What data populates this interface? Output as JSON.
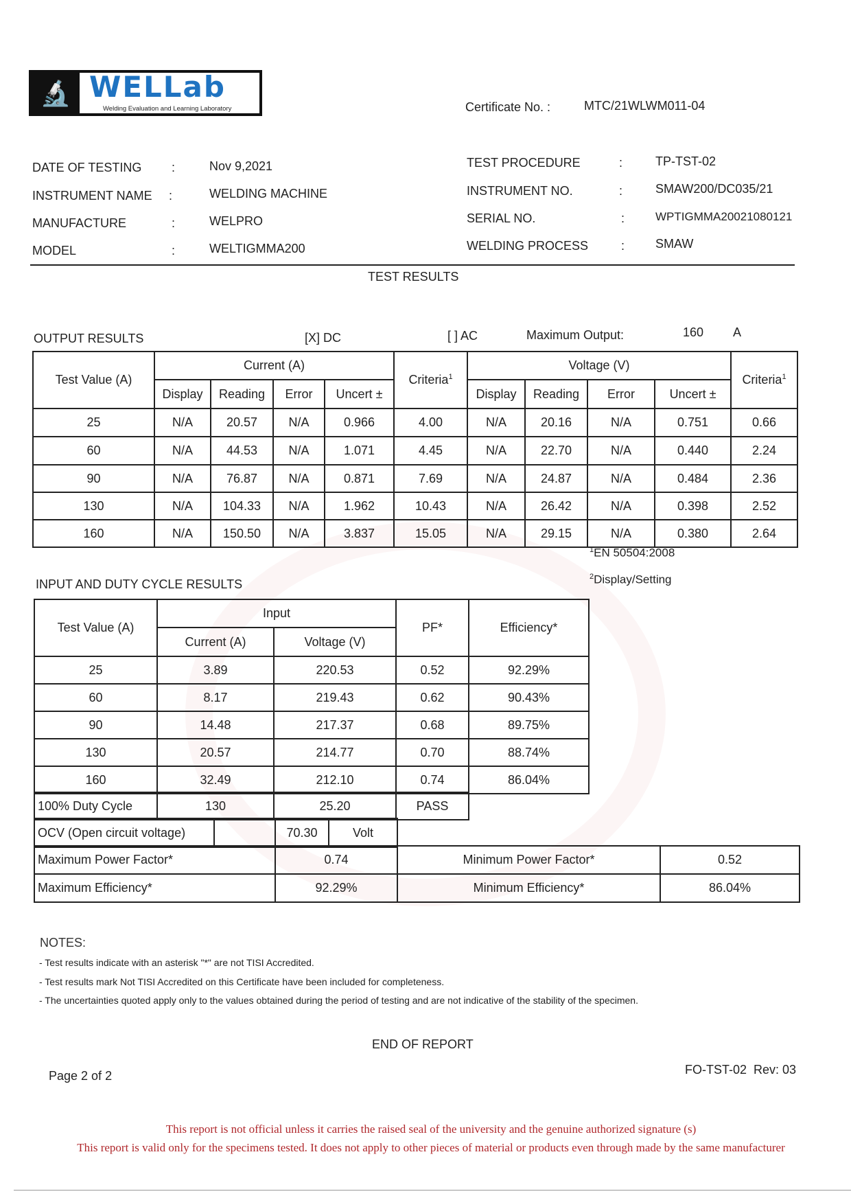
{
  "logo": {
    "text": "WELLab",
    "tagline": "Welding Evaluation and Learning Laboratory"
  },
  "certificate": {
    "label": "Certificate No. :",
    "value": "MTC/21WLWM011-04"
  },
  "info_left": [
    {
      "label": "DATE OF TESTING",
      "value": "Nov 9,2021"
    },
    {
      "label": "INSTRUMENT NAME",
      "value": "WELDING MACHINE"
    },
    {
      "label": "MANUFACTURE",
      "value": "WELPRO"
    },
    {
      "label": "MODEL",
      "value": "WELTIGMMA200"
    }
  ],
  "info_right": [
    {
      "label": "TEST PROCEDURE",
      "value": "TP-TST-02"
    },
    {
      "label": "INSTRUMENT NO.",
      "value": "SMAW200/DC035/21"
    },
    {
      "label": "SERIAL NO.",
      "value": "WPTIGMMA20021080121"
    },
    {
      "label": "WELDING PROCESS",
      "value": "SMAW"
    }
  ],
  "colon": ":",
  "test_results_title": "TEST RESULTS",
  "output": {
    "title": "OUTPUT RESULTS",
    "dc": "[X] DC",
    "ac": "[ ] AC",
    "max_output_label": "Maximum Output:",
    "max_output_value": "160",
    "max_output_unit": "A",
    "headers": {
      "test_value": "Test Value (A)",
      "current": "Current (A)",
      "voltage": "Voltage (V)",
      "criteria": "Criteria",
      "criteria_sup": "1",
      "display": "Display",
      "reading": "Reading",
      "error": "Error",
      "uncert": "Uncert ±"
    },
    "rows": [
      [
        "25",
        "N/A",
        "20.57",
        "N/A",
        "0.966",
        "4.00",
        "N/A",
        "20.16",
        "N/A",
        "0.751",
        "0.66"
      ],
      [
        "60",
        "N/A",
        "44.53",
        "N/A",
        "1.071",
        "4.45",
        "N/A",
        "22.70",
        "N/A",
        "0.440",
        "2.24"
      ],
      [
        "90",
        "N/A",
        "76.87",
        "N/A",
        "0.871",
        "7.69",
        "N/A",
        "24.87",
        "N/A",
        "0.484",
        "2.36"
      ],
      [
        "130",
        "N/A",
        "104.33",
        "N/A",
        "1.962",
        "10.43",
        "N/A",
        "26.42",
        "N/A",
        "0.398",
        "2.52"
      ],
      [
        "160",
        "N/A",
        "150.50",
        "N/A",
        "3.837",
        "15.05",
        "N/A",
        "29.15",
        "N/A",
        "0.380",
        "2.64"
      ]
    ],
    "footnote1_mark": "1",
    "footnote1": "EN 50504:2008",
    "footnote2_mark": "2",
    "footnote2": "Display/Setting"
  },
  "input": {
    "title": "INPUT AND DUTY CYCLE RESULTS",
    "headers": {
      "test_value": "Test Value (A)",
      "input": "Input",
      "current": "Current (A)",
      "voltage": "Voltage (V)",
      "pf": "PF*",
      "efficiency": "Efficiency*"
    },
    "rows": [
      [
        "25",
        "3.89",
        "220.53",
        "0.52",
        "92.29%"
      ],
      [
        "60",
        "8.17",
        "219.43",
        "0.62",
        "90.43%"
      ],
      [
        "90",
        "14.48",
        "217.37",
        "0.68",
        "89.75%"
      ],
      [
        "130",
        "20.57",
        "214.77",
        "0.70",
        "88.74%"
      ],
      [
        "160",
        "32.49",
        "212.10",
        "0.74",
        "86.04%"
      ]
    ],
    "duty": [
      "100% Duty Cycle",
      "130",
      "25.20",
      "PASS"
    ],
    "ocv": {
      "label": "OCV (Open circuit voltage)",
      "value": "70.30",
      "unit": "Volt"
    },
    "max_pf": {
      "label": "Maximum Power Factor*",
      "value": "0.74"
    },
    "min_pf": {
      "label": "Minimum Power Factor*",
      "value": "0.52"
    },
    "max_eff": {
      "label": "Maximum Efficiency*",
      "value": "92.29%"
    },
    "min_eff": {
      "label": "Minimum Efficiency*",
      "value": "86.04%"
    }
  },
  "notes": {
    "title": "NOTES:",
    "items": [
      "- Test results indicate with an asterisk \"*\" are not TISI Accredited.",
      "- Test results mark Not TISI Accredited on this Certificate have been included for completeness.",
      "- The uncertainties quoted apply only to the values obtained during the period of testing and are not indicative of the stability of the specimen."
    ]
  },
  "end": "END OF REPORT",
  "page": "Page 2 of 2",
  "form": "FO-TST-02  Rev: 03",
  "disclaimer": [
    "This report is not official unless it carries the raised seal of the university and the genuine authorized signature (s)",
    "This report is valid only for the specimens tested. It does not apply to other pieces of material or products even through made by the same manufacturer"
  ]
}
